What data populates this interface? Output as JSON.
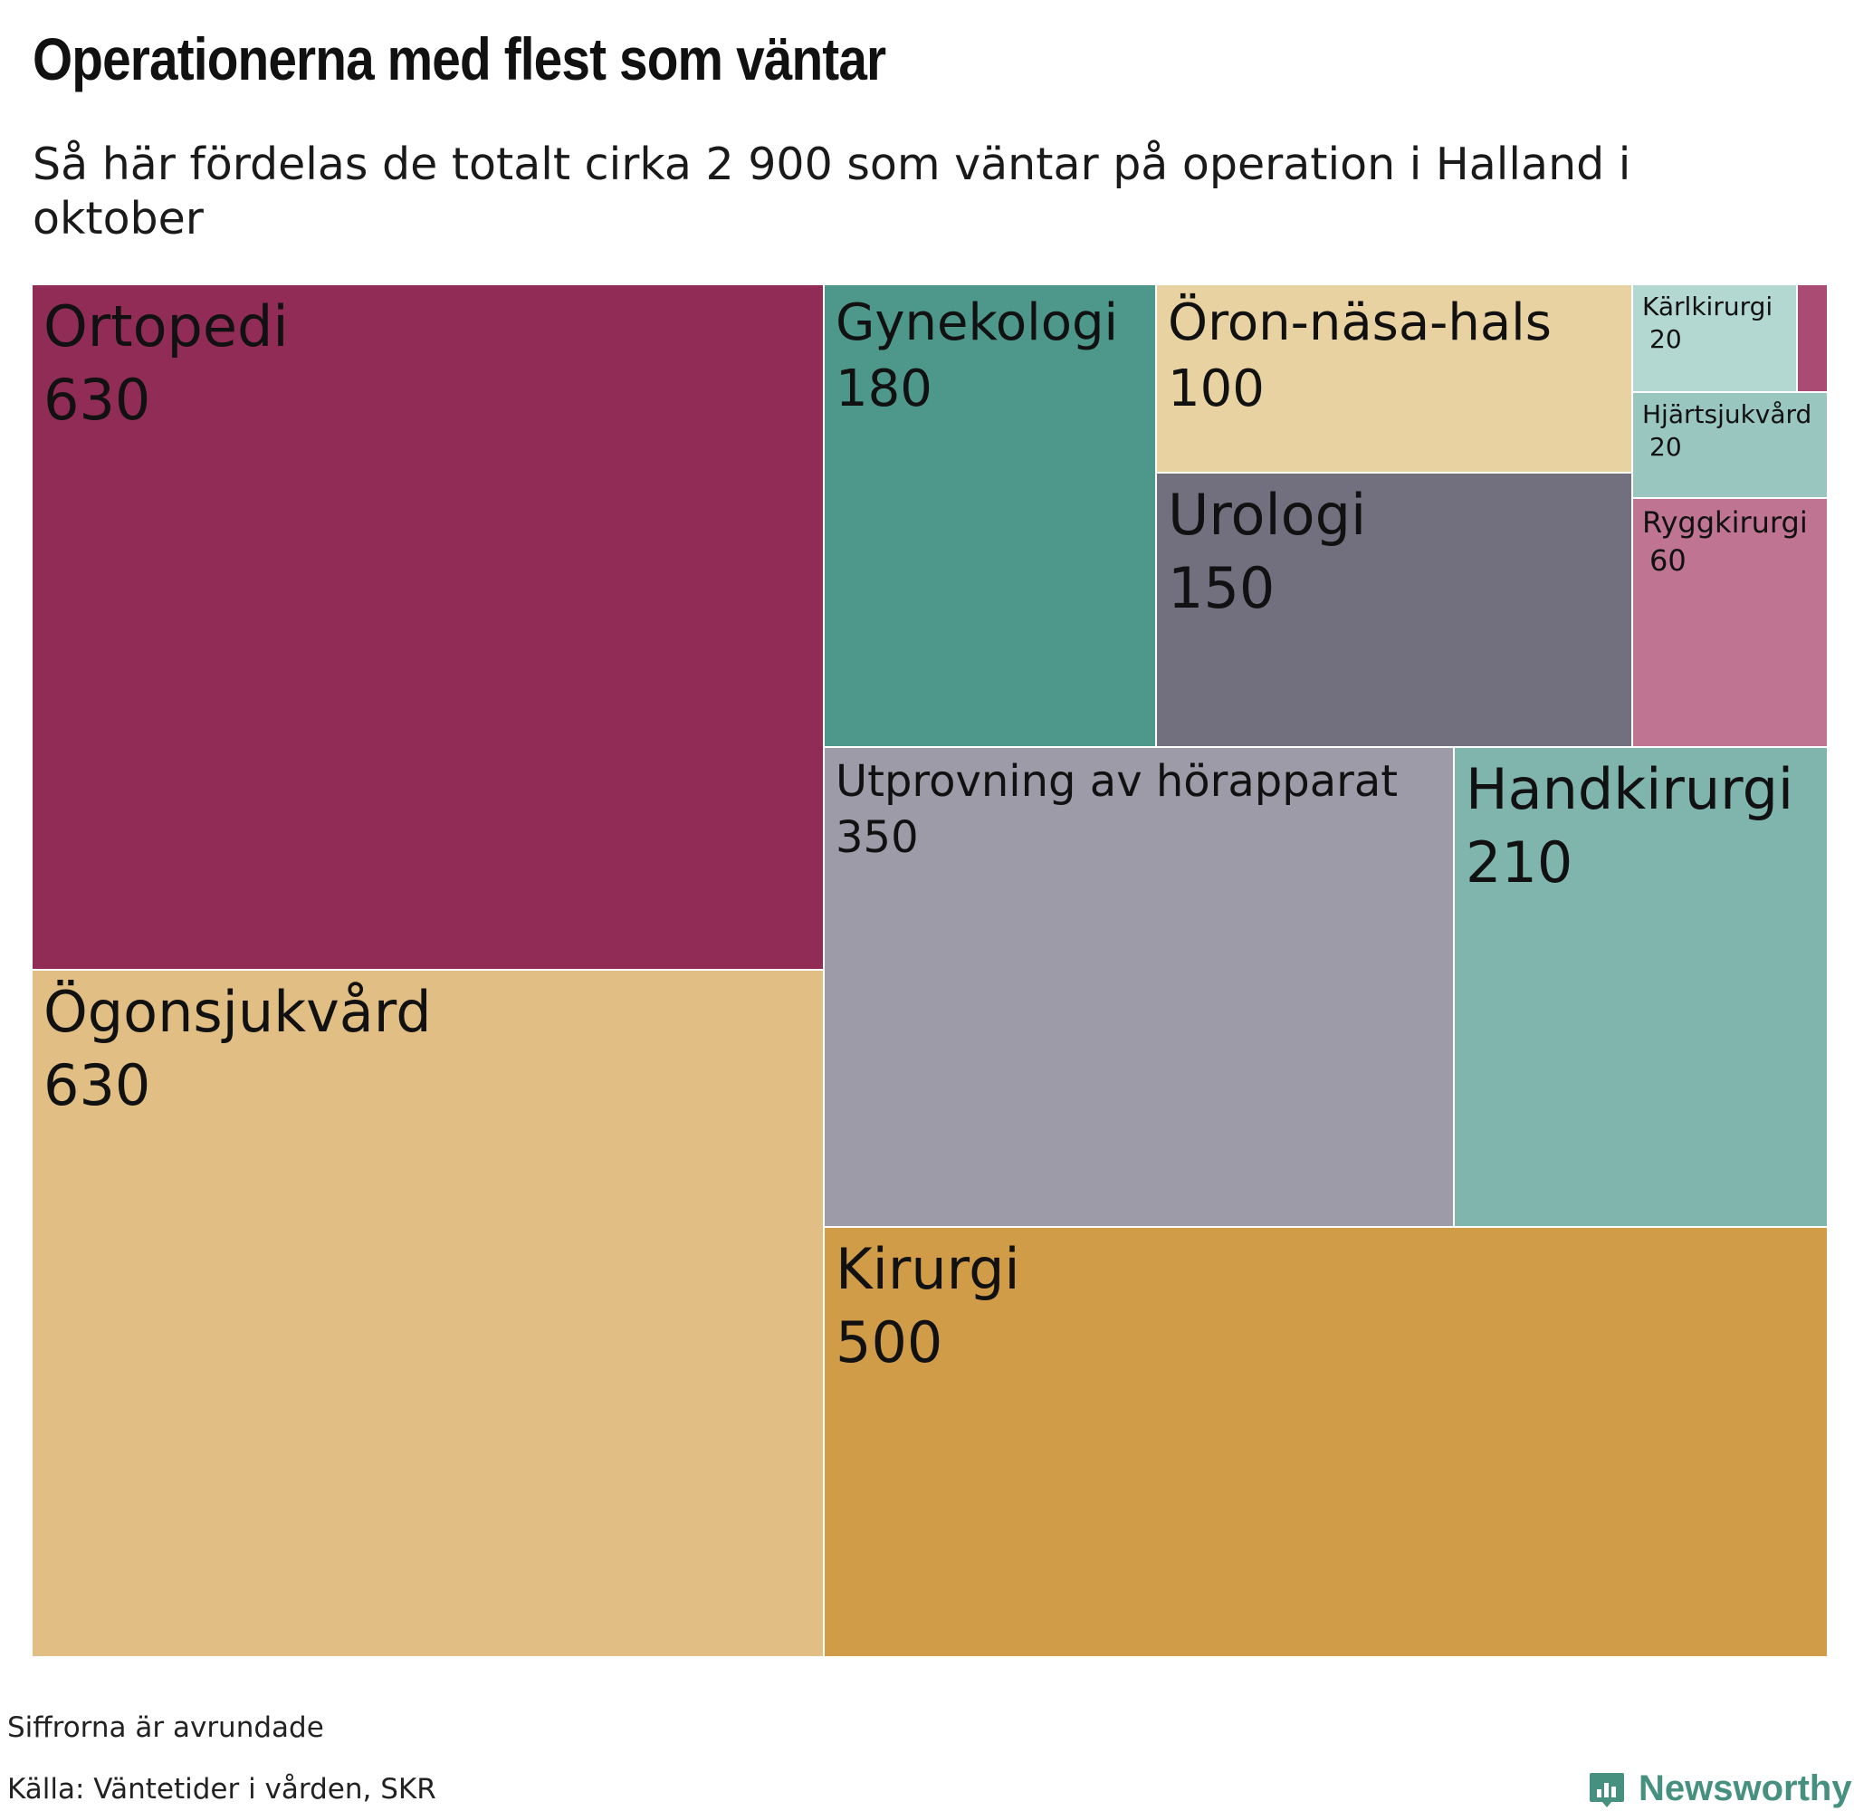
{
  "title": "Operationerna med flest som väntar",
  "subtitle": "Så här fördelas de totalt cirka 2 900 som väntar på operation i Halland i oktober",
  "footer": {
    "note": "Siffrorna är avrundade",
    "source": "Källa: Väntetider i vården, SKR",
    "brand": "Newsworthy"
  },
  "chart_data": {
    "type": "treemap",
    "title": "Operationerna med flest som väntar",
    "subtitle": "Så här fördelas de totalt cirka 2 900 som väntar på operation i Halland i oktober",
    "items": [
      {
        "name": "Ortopedi",
        "label": "630",
        "value": 630,
        "color": "#912c56"
      },
      {
        "name": "Ögonsjukvård",
        "label": "630",
        "value": 630,
        "color": "#e1bf84"
      },
      {
        "name": "Gynekologi",
        "label": "180",
        "value": 180,
        "color": "#4e988b"
      },
      {
        "name": "Öron-näsa-hals",
        "label": "100",
        "value": 100,
        "color": "#e8d2a2"
      },
      {
        "name": "Urologi",
        "label": "150",
        "value": 150,
        "color": "#72707e"
      },
      {
        "name": "Kärlkirurgi",
        "label": "20",
        "value": 20,
        "color": "#b2d8d1"
      },
      {
        "name": "",
        "label": "",
        "value": 10,
        "color": "#a84c74"
      },
      {
        "name": "Hjärtsjukvård",
        "label": "20",
        "value": 20,
        "color": "#9ac6c0"
      },
      {
        "name": "Ryggkirurgi",
        "label": "60",
        "value": 60,
        "color": "#bf7591"
      },
      {
        "name": "Utprovning av hörapparat",
        "label": "350",
        "value": 350,
        "color": "#9d9ba8"
      },
      {
        "name": "Handkirurgi",
        "label": "210",
        "value": 210,
        "color": "#7fb5ad"
      },
      {
        "name": "Kirurgi",
        "label": "500",
        "value": 500,
        "color": "#d09c48"
      }
    ]
  }
}
